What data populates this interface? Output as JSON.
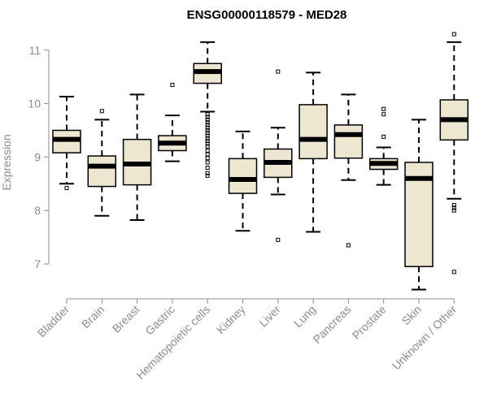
{
  "chart_data": {
    "type": "boxplot",
    "title": "ENSG00000118579 - MED28",
    "xlabel": "",
    "ylabel": "Expression",
    "ylim": [
      6.4,
      11.3
    ],
    "yticks": [
      7,
      8,
      9,
      10,
      11
    ],
    "colors": {
      "box_fill": "#ede7d1",
      "box_stroke": "#000000",
      "axis": "#8c8c8c",
      "median": "#000000"
    },
    "categories": [
      "Bladder",
      "Brain",
      "Breast",
      "Gastric",
      "Hematopoietic cells",
      "Kidney",
      "Liver",
      "Lung",
      "Pancreas",
      "Prostate",
      "Skin",
      "Unknown / Other"
    ],
    "boxes": [
      {
        "name": "Bladder",
        "whisker_low": 8.5,
        "q1": 9.08,
        "median": 9.33,
        "q3": 9.5,
        "whisker_high": 10.13,
        "outliers": [
          8.42
        ]
      },
      {
        "name": "Brain",
        "whisker_low": 7.9,
        "q1": 8.45,
        "median": 8.83,
        "q3": 9.02,
        "whisker_high": 9.7,
        "outliers": [
          9.86
        ]
      },
      {
        "name": "Breast",
        "whisker_low": 7.82,
        "q1": 8.48,
        "median": 8.87,
        "q3": 9.33,
        "whisker_high": 10.17,
        "outliers": []
      },
      {
        "name": "Gastric",
        "whisker_low": 8.92,
        "q1": 9.12,
        "median": 9.26,
        "q3": 9.4,
        "whisker_high": 9.78,
        "outliers": [
          10.35
        ]
      },
      {
        "name": "Hematopoietic cells",
        "whisker_low": 9.85,
        "q1": 10.38,
        "median": 10.6,
        "q3": 10.75,
        "whisker_high": 11.15,
        "outliers": [
          9.8,
          9.75,
          9.7,
          9.65,
          9.6,
          9.55,
          9.5,
          9.45,
          9.4,
          9.35,
          9.3,
          9.25,
          9.2,
          9.12,
          9.05,
          8.98,
          8.9,
          8.8,
          8.7,
          8.65
        ]
      },
      {
        "name": "Kidney",
        "whisker_low": 7.62,
        "q1": 8.32,
        "median": 8.58,
        "q3": 8.97,
        "whisker_high": 9.48,
        "outliers": []
      },
      {
        "name": "Liver",
        "whisker_low": 8.3,
        "q1": 8.62,
        "median": 8.9,
        "q3": 9.15,
        "whisker_high": 9.55,
        "outliers": [
          10.6,
          7.45
        ]
      },
      {
        "name": "Lung",
        "whisker_low": 7.6,
        "q1": 8.97,
        "median": 9.33,
        "q3": 9.98,
        "whisker_high": 10.58,
        "outliers": []
      },
      {
        "name": "Pancreas",
        "whisker_low": 8.57,
        "q1": 8.98,
        "median": 9.42,
        "q3": 9.6,
        "whisker_high": 10.17,
        "outliers": [
          7.35
        ]
      },
      {
        "name": "Prostate",
        "whisker_low": 8.48,
        "q1": 8.77,
        "median": 8.88,
        "q3": 8.97,
        "whisker_high": 9.18,
        "outliers": [
          9.9,
          9.8,
          9.38
        ]
      },
      {
        "name": "Skin",
        "whisker_low": 6.52,
        "q1": 6.95,
        "median": 8.6,
        "q3": 8.9,
        "whisker_high": 9.7,
        "outliers": []
      },
      {
        "name": "Unknown / Other",
        "whisker_low": 8.22,
        "q1": 9.32,
        "median": 9.7,
        "q3": 10.07,
        "whisker_high": 11.15,
        "outliers": [
          11.3,
          8.1,
          8.05,
          8.0,
          6.85
        ]
      }
    ]
  }
}
